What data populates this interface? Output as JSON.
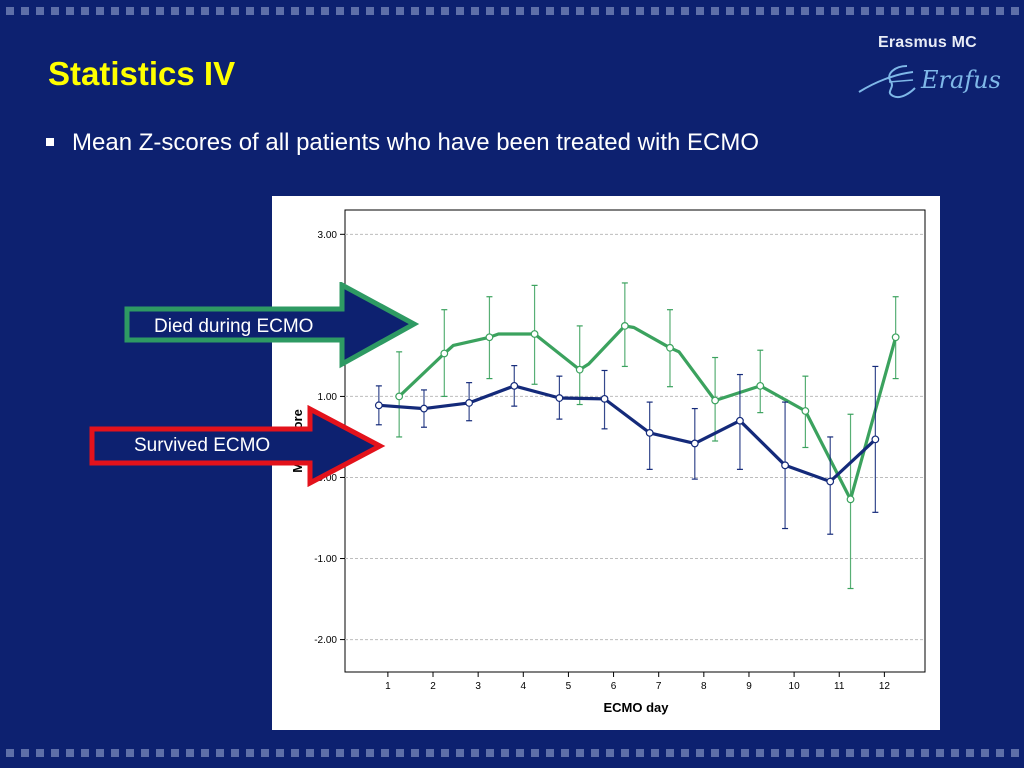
{
  "slide": {
    "title": "Statistics IV",
    "bullet": "Mean Z-scores of all patients who have been treated with ECMO"
  },
  "logo": {
    "name": "Erasmus MC",
    "script": "Erafus"
  },
  "callouts": {
    "died": {
      "label": "Died during ECMO",
      "border_color": "#2e9a63"
    },
    "survived": {
      "label": "Survived ECMO",
      "border_color": "#e3121b"
    }
  },
  "colors": {
    "background": "#0d2170",
    "title": "#ffff00",
    "died_series": "#3ba25e",
    "survived_series": "#142a7a"
  },
  "chart_data": {
    "type": "line",
    "xlabel": "ECMO day",
    "ylabel": "Mean Z-score",
    "ylabel_visible": "Me     core",
    "categories": [
      "1",
      "2",
      "3",
      "4",
      "5",
      "6",
      "7",
      "8",
      "9",
      "10",
      "11",
      "12"
    ],
    "ylim": [
      -2.4,
      3.3
    ],
    "yticks": [
      3.0,
      1.0,
      0.0,
      -1.0,
      -2.0
    ],
    "ytick_labels": [
      "3.00",
      "1.00",
      "0.00",
      "-1.00",
      "-2.00"
    ],
    "grid": true,
    "series": [
      {
        "key": "died",
        "color": "#3ba25e",
        "points": [
          {
            "x": 1.25,
            "y": 1.0,
            "lo": 0.5,
            "hi": 1.55,
            "marker": true
          },
          {
            "x": 2.25,
            "y": 1.53,
            "lo": 1.0,
            "hi": 2.07,
            "marker": true
          },
          {
            "x": 2.45,
            "y": 1.63,
            "marker": false
          },
          {
            "x": 3.25,
            "y": 1.73,
            "lo": 1.22,
            "hi": 2.23,
            "marker": true
          },
          {
            "x": 3.45,
            "y": 1.77,
            "marker": false
          },
          {
            "x": 4.25,
            "y": 1.77,
            "lo": 1.15,
            "hi": 2.37,
            "marker": true
          },
          {
            "x": 5.25,
            "y": 1.33,
            "lo": 0.9,
            "hi": 1.87,
            "marker": true
          },
          {
            "x": 5.45,
            "y": 1.4,
            "marker": false
          },
          {
            "x": 6.25,
            "y": 1.87,
            "lo": 1.37,
            "hi": 2.4,
            "marker": true
          },
          {
            "x": 6.45,
            "y": 1.85,
            "marker": false
          },
          {
            "x": 7.25,
            "y": 1.6,
            "lo": 1.12,
            "hi": 2.07,
            "marker": true
          },
          {
            "x": 7.45,
            "y": 1.55,
            "marker": false
          },
          {
            "x": 8.25,
            "y": 0.95,
            "lo": 0.45,
            "hi": 1.48,
            "marker": true
          },
          {
            "x": 9.25,
            "y": 1.13,
            "lo": 0.8,
            "hi": 1.57,
            "marker": true
          },
          {
            "x": 10.25,
            "y": 0.82,
            "lo": 0.37,
            "hi": 1.25,
            "marker": true
          },
          {
            "x": 11.25,
            "y": -0.27,
            "lo": -1.37,
            "hi": 0.78,
            "marker": true
          },
          {
            "x": 12.25,
            "y": 1.73,
            "lo": 1.22,
            "hi": 2.23,
            "marker": true
          }
        ]
      },
      {
        "key": "survived",
        "color": "#142a7a",
        "points": [
          {
            "x": 0.8,
            "y": 0.89,
            "lo": 0.65,
            "hi": 1.13,
            "marker": true
          },
          {
            "x": 1.8,
            "y": 0.85,
            "lo": 0.62,
            "hi": 1.08,
            "marker": true
          },
          {
            "x": 2.8,
            "y": 0.92,
            "lo": 0.7,
            "hi": 1.17,
            "marker": true
          },
          {
            "x": 3.8,
            "y": 1.13,
            "lo": 0.88,
            "hi": 1.38,
            "marker": true
          },
          {
            "x": 4.8,
            "y": 0.98,
            "lo": 0.72,
            "hi": 1.25,
            "marker": true
          },
          {
            "x": 5.8,
            "y": 0.97,
            "lo": 0.6,
            "hi": 1.32,
            "marker": true
          },
          {
            "x": 6.8,
            "y": 0.55,
            "lo": 0.1,
            "hi": 0.93,
            "marker": true
          },
          {
            "x": 7.8,
            "y": 0.42,
            "lo": -0.02,
            "hi": 0.85,
            "marker": true
          },
          {
            "x": 8.8,
            "y": 0.7,
            "lo": 0.1,
            "hi": 1.27,
            "marker": true
          },
          {
            "x": 9.8,
            "y": 0.15,
            "lo": -0.63,
            "hi": 0.93,
            "marker": true
          },
          {
            "x": 10.8,
            "y": -0.05,
            "lo": -0.7,
            "hi": 0.5,
            "marker": true
          },
          {
            "x": 11.8,
            "y": 0.47,
            "lo": -0.43,
            "hi": 1.37,
            "marker": true
          }
        ]
      }
    ]
  }
}
